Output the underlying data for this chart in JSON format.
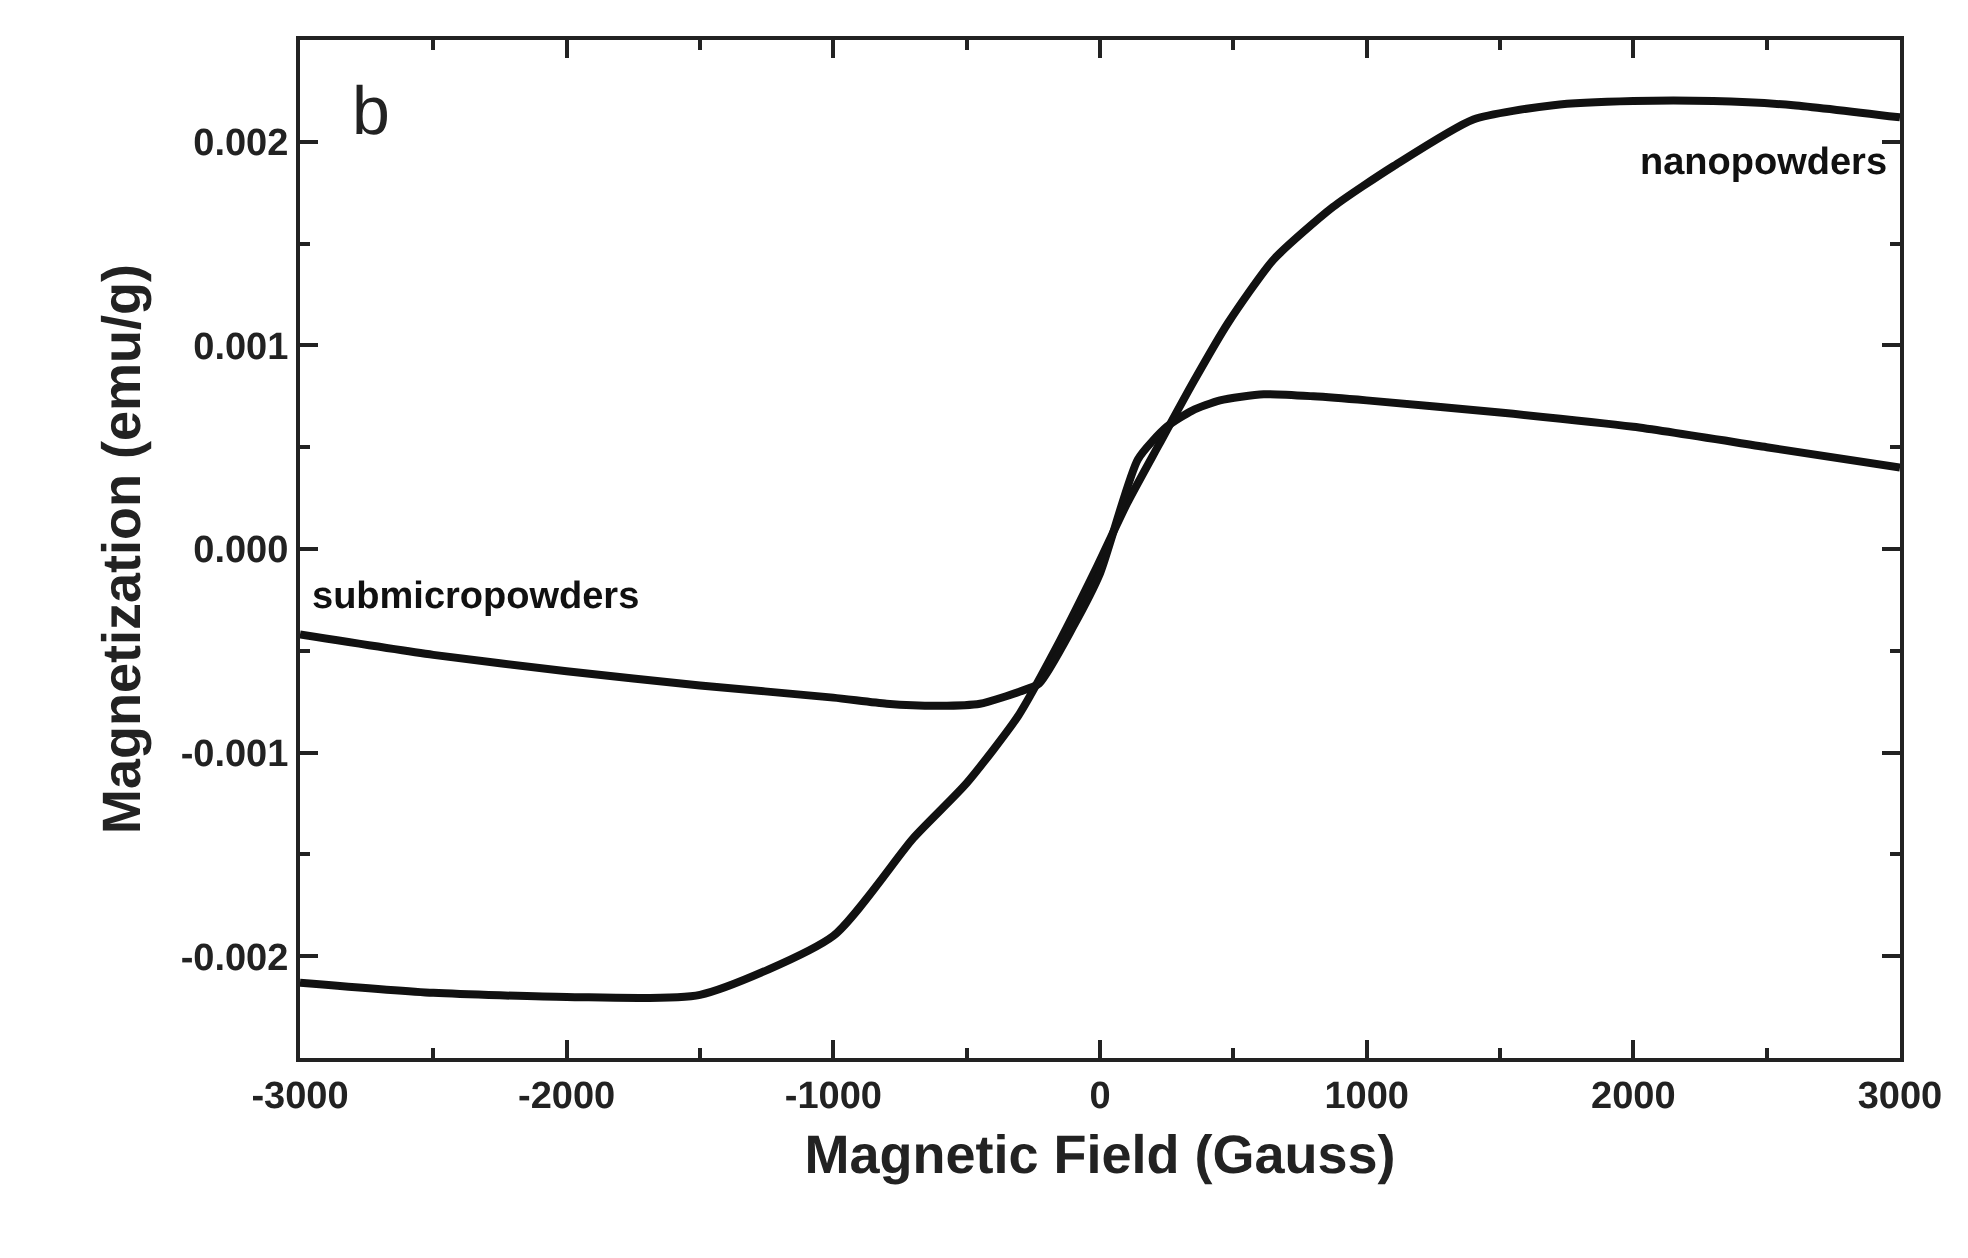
{
  "chart_data": {
    "type": "line",
    "xlabel": "Magnetic Field (Gauss)",
    "ylabel": "Magnetization (emu/g)",
    "xlim": [
      -3000,
      3000
    ],
    "xticks": [
      -3000,
      -2000,
      -1000,
      0,
      1000,
      2000,
      3000
    ],
    "ylim": [
      -0.0025,
      0.0025
    ],
    "yticks": [
      {
        "value": -0.002,
        "label": "-0.002"
      },
      {
        "value": -0.001,
        "label": "-0.001"
      },
      {
        "value": 0,
        "label": "0.000"
      },
      {
        "value": 0.001,
        "label": "0.001"
      },
      {
        "value": 0.002,
        "label": "0.002"
      }
    ],
    "grid": false,
    "legend": false,
    "marker": "none",
    "line_style": "solid",
    "series": [
      {
        "name": "nanopowders",
        "color": "#111111",
        "x": [
          -3000,
          -2500,
          -2000,
          -1500,
          -1000,
          -700,
          -500,
          -307,
          -150,
          -16,
          100,
          220,
          350,
          480,
          650,
          874,
          1100,
          1400,
          1700,
          2000,
          2300,
          2600,
          3000
        ],
        "values": [
          -0.00213,
          -0.00218,
          -0.0022,
          -0.00219,
          -0.0019,
          -0.00142,
          -0.00115,
          -0.00082,
          -0.00045,
          -0.0001,
          0.00022,
          0.00051,
          0.00082,
          0.00111,
          0.00142,
          0.00168,
          0.00188,
          0.00211,
          0.00218,
          0.0022,
          0.0022,
          0.00218,
          0.00212
        ]
      },
      {
        "name": "submicropowders",
        "color": "#111111",
        "x": [
          -3000,
          -2500,
          -2000,
          -1500,
          -1000,
          -800,
          -600,
          -450,
          -300,
          -228,
          -100,
          0,
          142,
          250,
          346,
          450,
          614,
          800,
          1000,
          1500,
          2000,
          2500,
          3000
        ],
        "values": [
          -0.00042,
          -0.00052,
          -0.0006,
          -0.00067,
          -0.00073,
          -0.00076,
          -0.00077,
          -0.00076,
          -0.0007,
          -0.00066,
          -0.00038,
          -0.00012,
          0.00044,
          0.0006,
          0.00068,
          0.00073,
          0.00076,
          0.00075,
          0.00073,
          0.00067,
          0.0006,
          0.0005,
          0.0004
        ]
      }
    ],
    "annotations": [
      "b"
    ]
  }
}
